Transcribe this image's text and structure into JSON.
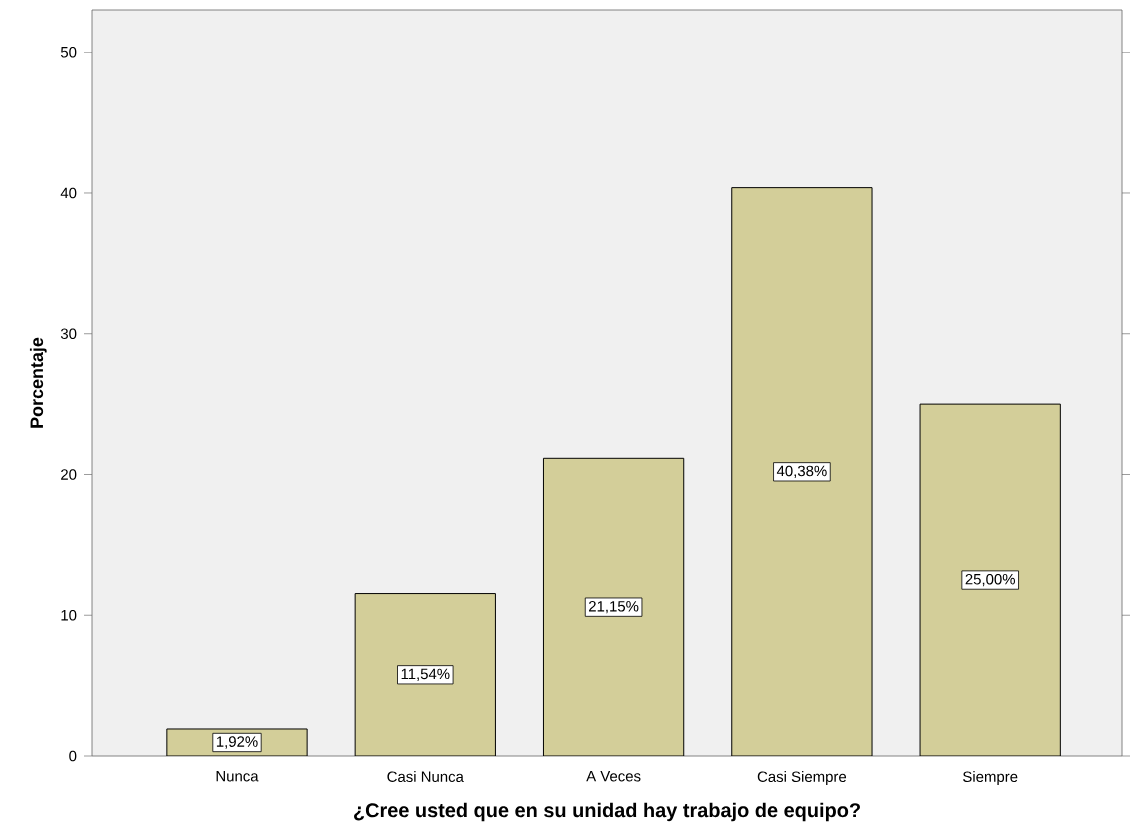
{
  "chart_data": {
    "type": "bar",
    "xlabel": "¿Cree usted que en su unidad hay trabajo de equipo?",
    "ylabel": "Porcentaje",
    "categories": [
      "Nunca",
      "Casi Nunca",
      "A Veces",
      "Casi Siempre",
      "Siempre"
    ],
    "values": [
      1.92,
      11.54,
      21.15,
      40.38,
      25.0
    ],
    "value_labels": [
      "1,92%",
      "11,54%",
      "21,15%",
      "40,38%",
      "25,00%"
    ],
    "color": "#d3ce99",
    "ylim": [
      0,
      53
    ],
    "yticks": [
      0,
      10,
      20,
      30,
      40,
      50
    ],
    "grid": false
  }
}
